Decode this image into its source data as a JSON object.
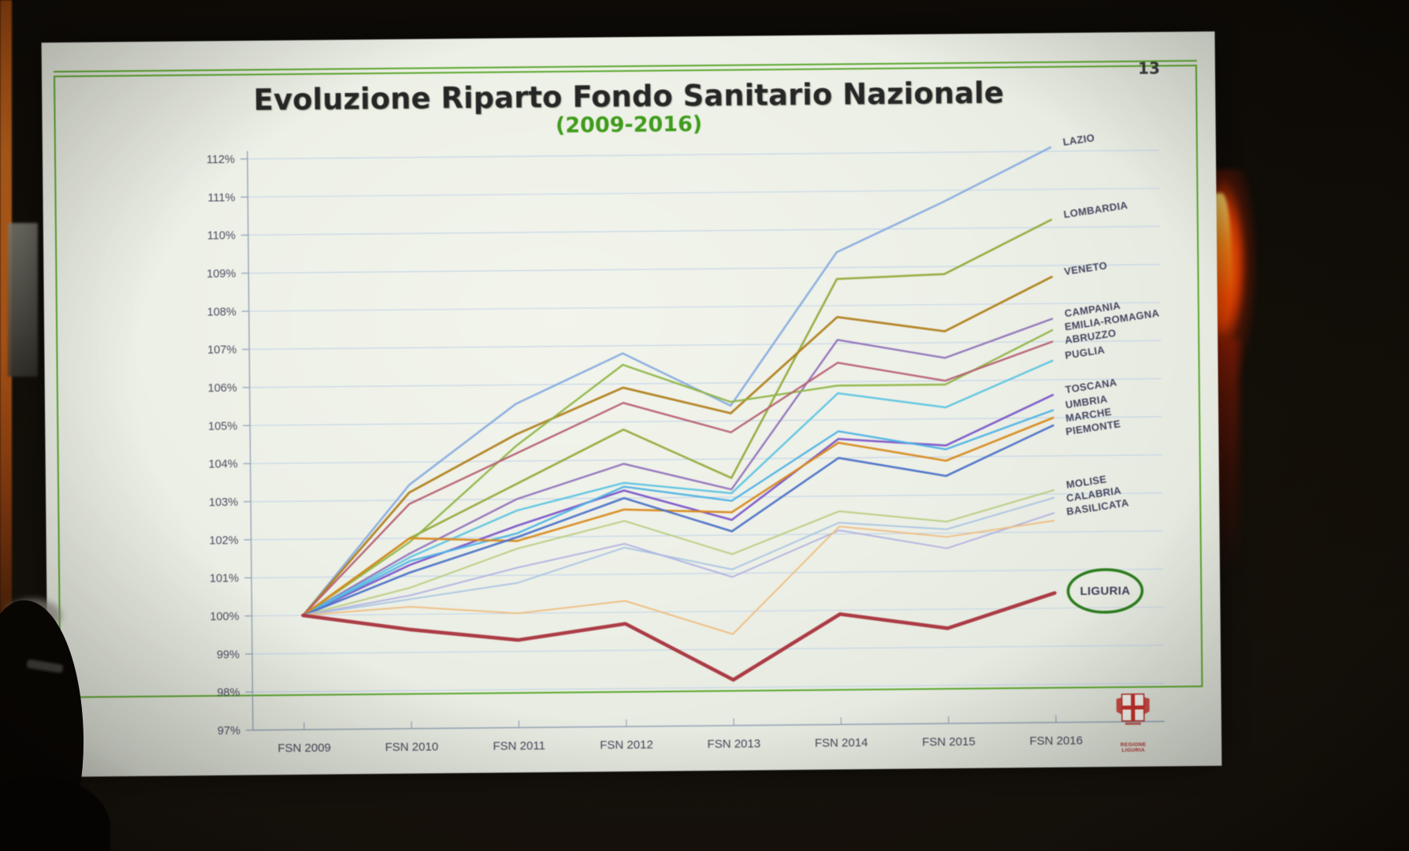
{
  "photo": {
    "page_number": "13",
    "logo": {
      "caption": "REGIONE LIGURIA"
    }
  },
  "slide": {
    "title": "Evoluzione Riparto Fondo Sanitario Nazionale",
    "subtitle": "(2009-2016)"
  },
  "chart_data": {
    "type": "line",
    "title": "Evoluzione Riparto Fondo Sanitario Nazionale",
    "subtitle": "(2009-2016)",
    "x_categories": [
      "FSN 2009",
      "FSN 2010",
      "FSN 2011",
      "FSN 2012",
      "FSN 2013",
      "FSN 2014",
      "FSN 2015",
      "FSN 2016"
    ],
    "y_axis": {
      "min": 97,
      "max": 112,
      "step": 1,
      "unit": "%",
      "tick_labels": [
        "97%",
        "98%",
        "99%",
        "100%",
        "101%",
        "102%",
        "103%",
        "104%",
        "105%",
        "106%",
        "107%",
        "108%",
        "109%",
        "110%",
        "111%",
        "112%"
      ]
    },
    "grid": true,
    "baseline_value": 100,
    "legend_position": "labels-at-line-ends",
    "annotations": [
      {
        "type": "ellipse-highlight",
        "series": "LIGURIA",
        "color": "#2e7d1f"
      }
    ],
    "series": [
      {
        "name": "LAZIO",
        "color": "#89ade0",
        "width": 2.6,
        "values": [
          100,
          103.4,
          105.5,
          106.8,
          105.4,
          109.4,
          110.7,
          112.1
        ]
      },
      {
        "name": "LOMBARDIA",
        "color": "#95a93c",
        "width": 2.6,
        "values": [
          100,
          102.0,
          103.4,
          104.8,
          103.5,
          108.7,
          108.8,
          110.2
        ]
      },
      {
        "name": "VENETO",
        "color": "#b0801e",
        "width": 2.8,
        "values": [
          100,
          103.2,
          104.7,
          105.9,
          105.2,
          107.7,
          107.3,
          108.7
        ]
      },
      {
        "name": "CAMPANIA",
        "color": "#9071bb",
        "width": 2.4,
        "values": [
          100,
          101.6,
          103.0,
          103.9,
          103.2,
          107.1,
          106.6,
          107.6
        ]
      },
      {
        "name": "EMILIA-ROMAGNA",
        "color": "#8fb547",
        "width": 2.4,
        "values": [
          100,
          101.9,
          104.4,
          106.5,
          105.5,
          105.9,
          105.9,
          107.3
        ]
      },
      {
        "name": "ABRUZZO",
        "color": "#b55f72",
        "width": 2.4,
        "values": [
          100,
          102.9,
          104.2,
          105.5,
          104.7,
          106.5,
          106.0,
          107.0
        ]
      },
      {
        "name": "PUGLIA",
        "color": "#5bc3e2",
        "width": 2.4,
        "values": [
          100,
          101.5,
          102.7,
          103.4,
          103.1,
          105.7,
          105.3,
          106.5
        ]
      },
      {
        "name": "TOSCANA",
        "color": "#7a55c9",
        "width": 2.6,
        "values": [
          100,
          101.3,
          102.3,
          103.2,
          102.4,
          104.5,
          104.3,
          105.6
        ]
      },
      {
        "name": "UMBRIA",
        "color": "#4db2e4",
        "width": 2.4,
        "values": [
          100,
          101.4,
          102.1,
          103.3,
          102.9,
          104.7,
          104.2,
          105.2
        ]
      },
      {
        "name": "MARCHE",
        "color": "#d8891c",
        "width": 2.6,
        "values": [
          100,
          102.0,
          101.9,
          102.7,
          102.6,
          104.4,
          103.9,
          105.0
        ]
      },
      {
        "name": "PIEMONTE",
        "color": "#4a70c8",
        "width": 2.6,
        "values": [
          100,
          101.1,
          102.0,
          103.0,
          102.1,
          104.0,
          103.5,
          104.8
        ]
      },
      {
        "name": "MOLISE",
        "color": "#b9cc83",
        "width": 2.1,
        "values": [
          100,
          100.7,
          101.7,
          102.4,
          101.5,
          102.6,
          102.3,
          103.1
        ]
      },
      {
        "name": "CALABRIA",
        "color": "#aac4e2",
        "width": 2.0,
        "values": [
          100,
          100.4,
          100.8,
          101.7,
          101.1,
          102.3,
          102.1,
          102.9
        ]
      },
      {
        "name": "BASILICATA",
        "color": "#b0b2e0",
        "width": 2.0,
        "values": [
          100,
          100.5,
          101.2,
          101.8,
          100.9,
          102.1,
          101.6,
          102.5
        ]
      },
      {
        "name": "",
        "color": "#eebd7f",
        "width": 2.0,
        "values": [
          100,
          100.2,
          100.0,
          100.3,
          99.4,
          102.2,
          101.9,
          102.3
        ]
      },
      {
        "name": "LIGURIA",
        "color": "#a8323c",
        "width": 4.6,
        "circled": true,
        "values": [
          100,
          99.6,
          99.3,
          99.7,
          98.2,
          99.9,
          99.5,
          100.4
        ]
      }
    ]
  }
}
